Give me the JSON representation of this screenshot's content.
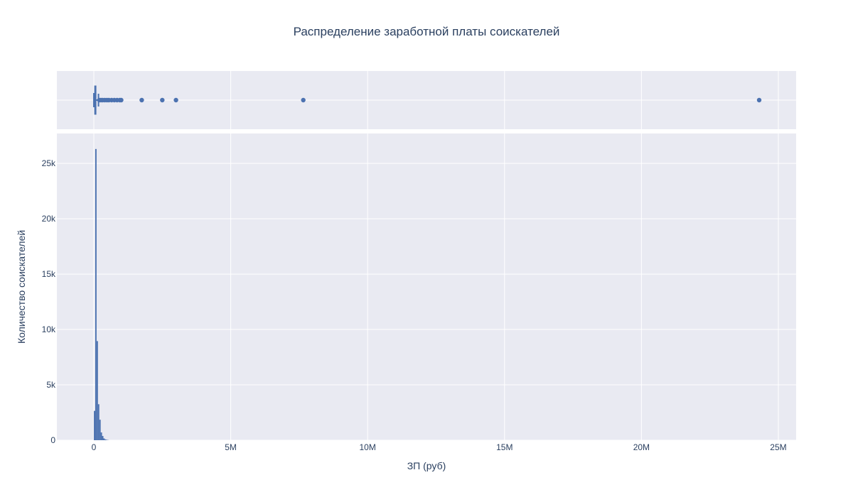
{
  "chart_data": {
    "type": "bar",
    "title": "Распределение заработной платы соискателей",
    "xlabel": "ЗП (руб)",
    "ylabel": "Количество соискателей",
    "xlim": [
      -1350000,
      25650000
    ],
    "ylim": [
      0,
      27700
    ],
    "grid": true,
    "legend": "none",
    "colors": {
      "bar": "#4c72b0",
      "plot_bg": "#e9eaf2",
      "grid": "#ffffff",
      "text": "#2a3f5f"
    },
    "x_ticks": [
      {
        "value": 0,
        "label": "0"
      },
      {
        "value": 5000000,
        "label": "5M"
      },
      {
        "value": 10000000,
        "label": "10M"
      },
      {
        "value": 15000000,
        "label": "15M"
      },
      {
        "value": 20000000,
        "label": "20M"
      },
      {
        "value": 25000000,
        "label": "25M"
      }
    ],
    "y_ticks": [
      {
        "value": 0,
        "label": "0"
      },
      {
        "value": 5000,
        "label": "5k"
      },
      {
        "value": 10000,
        "label": "10k"
      },
      {
        "value": 15000,
        "label": "15k"
      },
      {
        "value": 20000,
        "label": "20k"
      },
      {
        "value": 25000,
        "label": "25k"
      }
    ],
    "histogram": {
      "bin_width": 50000,
      "bins": [
        {
          "x0": 0,
          "count": 2650
        },
        {
          "x0": 50000,
          "count": 26300
        },
        {
          "x0": 100000,
          "count": 8950
        },
        {
          "x0": 150000,
          "count": 3250
        },
        {
          "x0": 200000,
          "count": 1850
        },
        {
          "x0": 250000,
          "count": 700
        },
        {
          "x0": 300000,
          "count": 380
        },
        {
          "x0": 350000,
          "count": 160
        },
        {
          "x0": 400000,
          "count": 70
        },
        {
          "x0": 450000,
          "count": 35
        },
        {
          "x0": 500000,
          "count": 15
        }
      ]
    },
    "boxplot": {
      "min": 1000,
      "q1": 30000,
      "median": 50000,
      "q3": 80000,
      "upper_fence": 170000,
      "outliers": [
        200000,
        260000,
        320000,
        400000,
        480000,
        550000,
        650000,
        750000,
        850000,
        950000,
        1000000,
        1750000,
        2500000,
        3000000,
        7650000,
        24300000
      ]
    }
  }
}
